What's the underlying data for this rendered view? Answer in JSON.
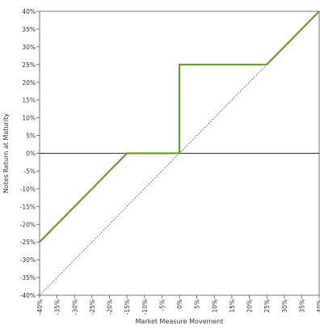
{
  "chart_data": {
    "type": "line",
    "title": "",
    "xlabel": "Market Measure Movement",
    "ylabel": "Notes Return at Maturity",
    "xlim": [
      -40,
      40
    ],
    "ylim": [
      -40,
      40
    ],
    "x_ticks": [
      -40,
      -35,
      -30,
      -25,
      -20,
      -15,
      -10,
      -5,
      0,
      5,
      10,
      15,
      20,
      25,
      30,
      35,
      40
    ],
    "y_ticks": [
      -40,
      -35,
      -30,
      -25,
      -20,
      -15,
      -10,
      -5,
      0,
      5,
      10,
      15,
      20,
      25,
      30,
      35,
      40
    ],
    "tick_format": "percent",
    "grid": false,
    "legend": "none",
    "series": [
      {
        "style": "solid",
        "color": "#6a9a35",
        "x": [
          -40,
          -15,
          0,
          0,
          25,
          40
        ],
        "y": [
          -25,
          0,
          0,
          25,
          25,
          40
        ]
      },
      {
        "style": "dotted",
        "color": "#333333",
        "x": [
          -40,
          40
        ],
        "y": [
          -40,
          40
        ]
      }
    ]
  }
}
